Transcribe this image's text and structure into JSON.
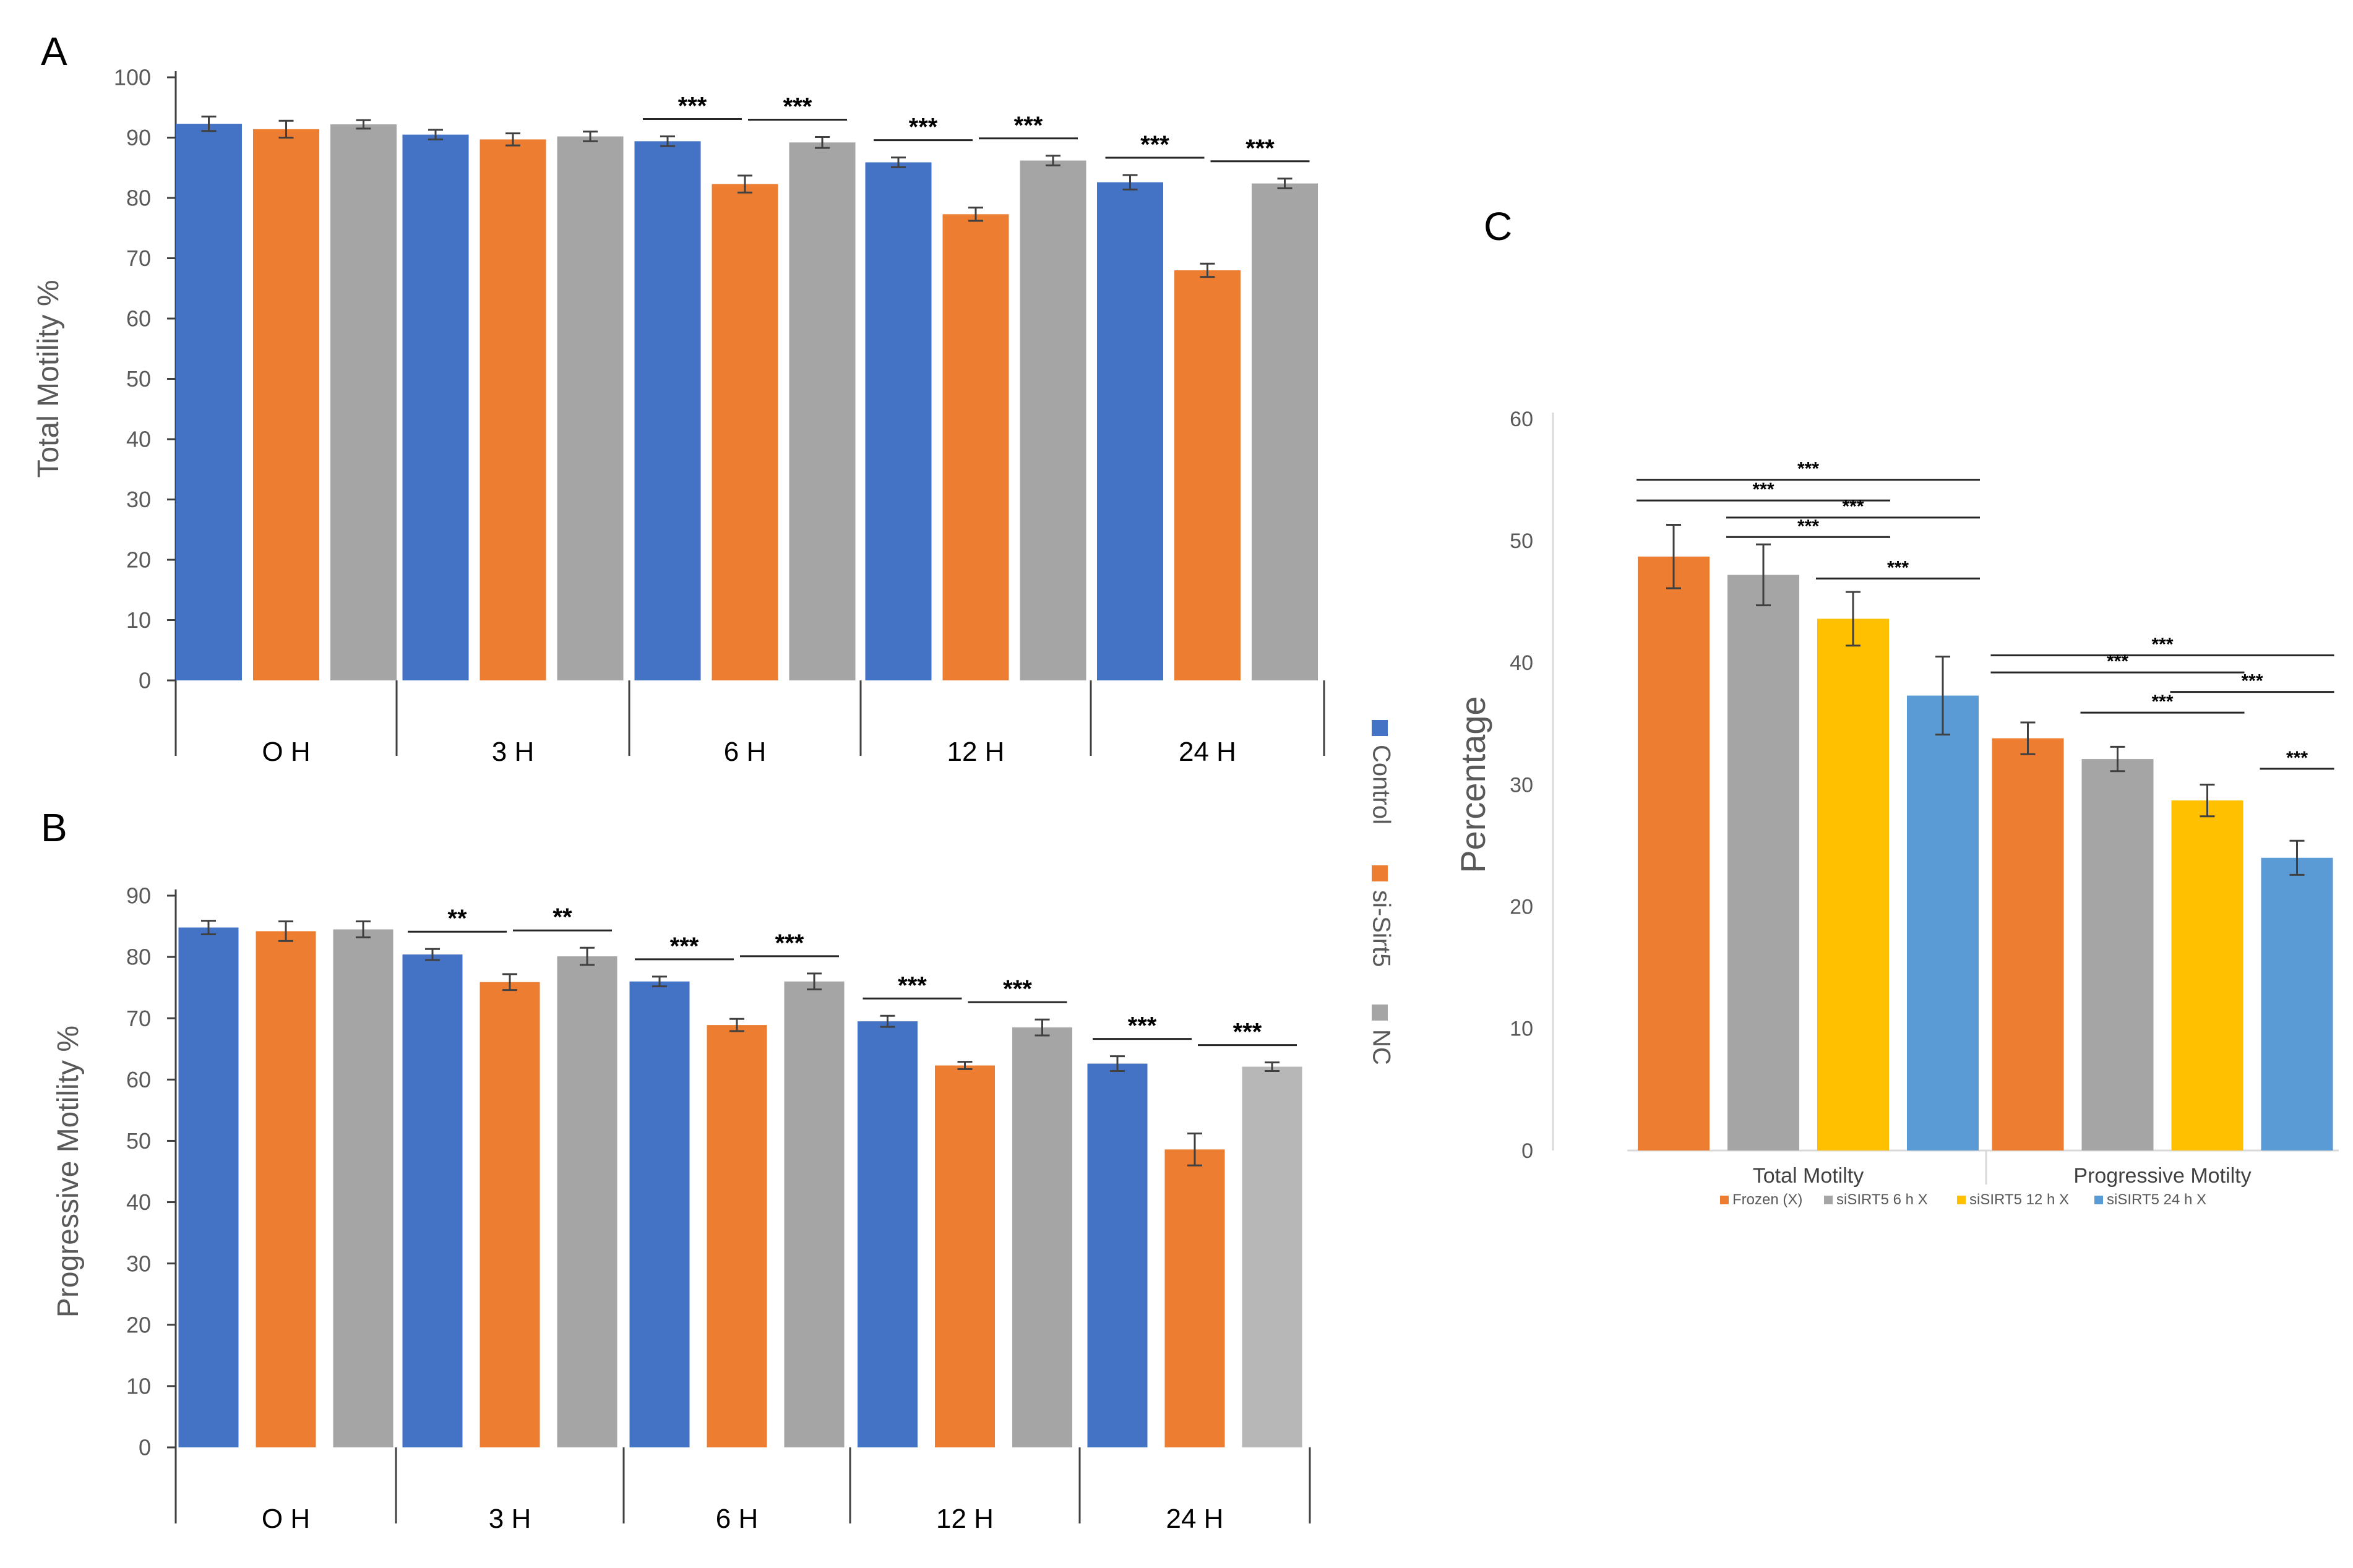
{
  "panels": [
    {
      "letter": "A"
    },
    {
      "letter": "B"
    },
    {
      "letter": "C"
    }
  ],
  "colors": {
    "control": "#4472C4",
    "si_sirt5": "#ED7D31",
    "nc": "#A5A5A5",
    "nc_light": "#B7B7B7",
    "frozen": "#ED7D31",
    "sisirt5_6h": "#A5A5A5",
    "sisirt5_12h": "#FFC000",
    "sisirt5_24h": "#5B9BD5",
    "axis_text": "#595959",
    "axis_line": "#d9d9d9",
    "sig_line": "#262626"
  },
  "legend_ab": [
    {
      "label": "Control",
      "color": "#4472C4"
    },
    {
      "label": "si-Sirt5",
      "color": "#ED7D31"
    },
    {
      "label": "NC",
      "color": "#A5A5A5"
    }
  ],
  "chart_data": [
    {
      "panel": "A",
      "type": "bar",
      "ylabel": "Total Motility %",
      "ylim": [
        0,
        100
      ],
      "yticks": [
        0,
        10,
        20,
        30,
        40,
        50,
        60,
        70,
        80,
        90,
        100
      ],
      "categories": [
        "O H",
        "3 H",
        "6 H",
        "12 H",
        "24 H"
      ],
      "series": [
        {
          "name": "Control",
          "color": "#4472C4",
          "values": [
            92.3,
            90.5,
            89.4,
            85.9,
            82.6
          ],
          "errors": [
            1.2,
            0.8,
            0.8,
            0.8,
            1.2
          ]
        },
        {
          "name": "si-Sirt5",
          "color": "#ED7D31",
          "values": [
            91.4,
            89.7,
            82.3,
            77.3,
            68.0
          ],
          "errors": [
            1.4,
            1.0,
            1.4,
            1.1,
            1.1
          ]
        },
        {
          "name": "NC",
          "color": "#A5A5A5",
          "values": [
            92.2,
            90.2,
            89.2,
            86.2,
            82.4
          ],
          "errors": [
            0.7,
            0.8,
            0.9,
            0.8,
            0.8
          ]
        }
      ],
      "significance": [
        {
          "group": 2,
          "from": 0,
          "to": 1,
          "label": "***"
        },
        {
          "group": 2,
          "from": 1,
          "to": 2,
          "label": "***"
        },
        {
          "group": 3,
          "from": 0,
          "to": 1,
          "label": "***"
        },
        {
          "group": 3,
          "from": 1,
          "to": 2,
          "label": "***"
        },
        {
          "group": 4,
          "from": 0,
          "to": 1,
          "label": "***"
        },
        {
          "group": 4,
          "from": 1,
          "to": 2,
          "label": "***"
        }
      ]
    },
    {
      "panel": "B",
      "type": "bar",
      "ylabel": "Progressive Motility %",
      "ylim": [
        0,
        90
      ],
      "yticks": [
        0,
        10,
        20,
        30,
        40,
        50,
        60,
        70,
        80,
        90
      ],
      "categories": [
        "O H",
        "3 H",
        "6 H",
        "12 H",
        "24 H"
      ],
      "series": [
        {
          "name": "Control",
          "color": "#4472C4",
          "values": [
            84.8,
            80.4,
            76.0,
            69.5,
            62.6
          ],
          "errors": [
            1.1,
            0.9,
            0.8,
            0.9,
            1.2
          ]
        },
        {
          "name": "si-Sirt5",
          "color": "#ED7D31",
          "values": [
            84.2,
            75.9,
            68.9,
            62.3,
            48.6
          ],
          "errors": [
            1.6,
            1.3,
            1.0,
            0.6,
            2.6
          ]
        },
        {
          "name": "NC",
          "color": "#A5A5A5",
          "values": [
            84.5,
            80.1,
            76.0,
            68.5,
            62.1
          ],
          "errors": [
            1.3,
            1.4,
            1.3,
            1.3,
            0.7
          ]
        }
      ],
      "significance": [
        {
          "group": 1,
          "from": 0,
          "to": 1,
          "label": "**"
        },
        {
          "group": 1,
          "from": 1,
          "to": 2,
          "label": "**"
        },
        {
          "group": 2,
          "from": 0,
          "to": 1,
          "label": "***"
        },
        {
          "group": 2,
          "from": 1,
          "to": 2,
          "label": "***"
        },
        {
          "group": 3,
          "from": 0,
          "to": 1,
          "label": "***"
        },
        {
          "group": 3,
          "from": 1,
          "to": 2,
          "label": "***"
        },
        {
          "group": 4,
          "from": 0,
          "to": 1,
          "label": "***"
        },
        {
          "group": 4,
          "from": 1,
          "to": 2,
          "label": "***"
        }
      ]
    },
    {
      "panel": "C",
      "type": "bar",
      "ylabel": "Percentage",
      "ylim": [
        0,
        60
      ],
      "yticks": [
        0,
        10,
        20,
        30,
        40,
        50,
        60
      ],
      "categories": [
        "Total Motilty",
        "Progressive Motilty"
      ],
      "series": [
        {
          "name": "Frozen (X)",
          "color": "#ED7D31",
          "values": [
            48.7,
            33.8
          ],
          "errors": [
            2.6,
            1.3
          ]
        },
        {
          "name": "siSIRT5 6 h X",
          "color": "#A5A5A5",
          "values": [
            47.2,
            32.1
          ],
          "errors": [
            2.5,
            1.0
          ]
        },
        {
          "name": "siSIRT5 12 h X",
          "color": "#FFC000",
          "values": [
            43.6,
            28.7
          ],
          "errors": [
            2.2,
            1.3
          ]
        },
        {
          "name": "siSIRT5 24 h X",
          "color": "#5B9BD5",
          "values": [
            37.3,
            24.0
          ],
          "errors": [
            3.2,
            1.4
          ]
        }
      ],
      "significance": [
        {
          "group": 0,
          "from": 0,
          "to": 3,
          "y": 55.0,
          "label": "***"
        },
        {
          "group": 0,
          "from": 0,
          "to": 2,
          "y": 53.3,
          "label": "***"
        },
        {
          "group": 0,
          "from": 1,
          "to": 3,
          "y": 51.9,
          "label": "***"
        },
        {
          "group": 0,
          "from": 1,
          "to": 2,
          "y": 50.3,
          "label": "***"
        },
        {
          "group": 0,
          "from": 2,
          "to": 3,
          "y": 46.9,
          "label": "***"
        },
        {
          "group": 1,
          "from": 0,
          "to": 3,
          "y": 40.6,
          "label": "***"
        },
        {
          "group": 1,
          "from": 0,
          "to": 2,
          "y": 39.2,
          "label": "***"
        },
        {
          "group": 1,
          "from": 2,
          "to": 3,
          "y": 37.6,
          "label": "***"
        },
        {
          "group": 1,
          "from": 1,
          "to": 2,
          "y": 35.9,
          "label": "***"
        },
        {
          "group": 1,
          "from": 3,
          "to": 3,
          "y": 31.3,
          "label": "***"
        }
      ]
    }
  ]
}
